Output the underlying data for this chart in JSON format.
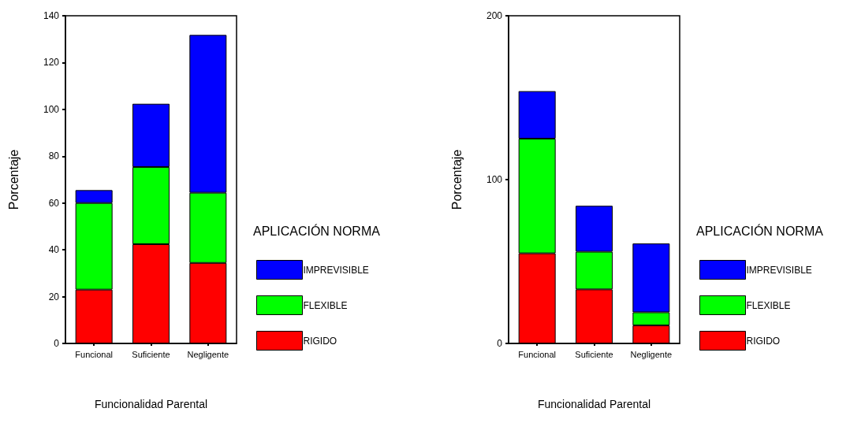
{
  "chart_data": [
    {
      "type": "bar",
      "stacked": true,
      "categories": [
        "Funcional",
        "Suficiente",
        "Negligente"
      ],
      "xlabel": "Funcionalidad Parental",
      "ylabel": "Porcentaje",
      "legend_title": "APLICACIÓN NORMA",
      "legend": "right",
      "ylim": [
        0,
        140
      ],
      "yticks": [
        0,
        20,
        40,
        60,
        80,
        100,
        120,
        140
      ],
      "series": [
        {
          "name": "RIGIDO",
          "color": "#ff0000",
          "values": [
            23,
            42.4,
            34.4
          ]
        },
        {
          "name": "FLEXIBLE",
          "color": "#00ff00",
          "values": [
            37,
            33,
            30
          ]
        },
        {
          "name": "IMPREVISIBLE",
          "color": "#0000ff",
          "values": [
            5.5,
            27,
            67.4
          ]
        }
      ]
    },
    {
      "type": "bar",
      "stacked": true,
      "categories": [
        "Funcional",
        "Suficiente",
        "Negligente"
      ],
      "xlabel": "Funcionalidad Parental",
      "ylabel": "Porcentaje",
      "legend_title": "APLICACIÓN NORMA",
      "legend": "right",
      "ylim": [
        0,
        200
      ],
      "yticks": [
        0,
        100,
        200
      ],
      "series": [
        {
          "name": "RIGIDO",
          "color": "#ff0000",
          "values": [
            55,
            33,
            11
          ]
        },
        {
          "name": "FLEXIBLE",
          "color": "#00ff00",
          "values": [
            70,
            23,
            8
          ]
        },
        {
          "name": "IMPREVISIBLE",
          "color": "#0000ff",
          "values": [
            29,
            28,
            42
          ]
        }
      ]
    }
  ]
}
